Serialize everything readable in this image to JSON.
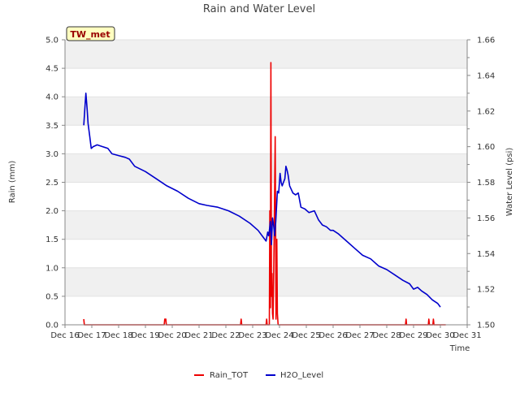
{
  "chart_data": {
    "type": "line",
    "title": "Rain and Water Level",
    "station_badge": "TW_met",
    "xlabel": "Time",
    "ylabel_left": "Rain (mm)",
    "ylabel_right": "Water Level (psi)",
    "x_domain": [
      16,
      31
    ],
    "x_ticks": [
      {
        "x": 16,
        "label": "Dec 16"
      },
      {
        "x": 17,
        "label": "Dec 17"
      },
      {
        "x": 18,
        "label": "Dec 18"
      },
      {
        "x": 19,
        "label": "Dec 19"
      },
      {
        "x": 20,
        "label": "Dec 20"
      },
      {
        "x": 21,
        "label": "Dec 21"
      },
      {
        "x": 22,
        "label": "Dec 22"
      },
      {
        "x": 23,
        "label": "Dec 23"
      },
      {
        "x": 24,
        "label": "Dec 24"
      },
      {
        "x": 25,
        "label": "Dec 25"
      },
      {
        "x": 26,
        "label": "Dec 26"
      },
      {
        "x": 27,
        "label": "Dec 27"
      },
      {
        "x": 28,
        "label": "Dec 28"
      },
      {
        "x": 29,
        "label": "Dec 29"
      },
      {
        "x": 30,
        "label": "Dec 30"
      },
      {
        "x": 31,
        "label": "Dec 31"
      }
    ],
    "y_left": {
      "range": [
        0,
        5
      ],
      "ticks": [
        {
          "v": 0,
          "label": "0.0"
        },
        {
          "v": 0.5,
          "label": "0.5"
        },
        {
          "v": 1,
          "label": "1.0"
        },
        {
          "v": 1.5,
          "label": "1.5"
        },
        {
          "v": 2,
          "label": "2.0"
        },
        {
          "v": 2.5,
          "label": "2.5"
        },
        {
          "v": 3,
          "label": "3.0"
        },
        {
          "v": 3.5,
          "label": "3.5"
        },
        {
          "v": 4,
          "label": "4.0"
        },
        {
          "v": 4.5,
          "label": "4.5"
        },
        {
          "v": 5,
          "label": "5.0"
        }
      ]
    },
    "y_right": {
      "range": [
        1.5,
        1.66
      ],
      "ticks": [
        {
          "v": 1.5,
          "label": "1.50"
        },
        {
          "v": 1.52,
          "label": "1.52"
        },
        {
          "v": 1.54,
          "label": "1.54"
        },
        {
          "v": 1.56,
          "label": "1.56"
        },
        {
          "v": 1.58,
          "label": "1.58"
        },
        {
          "v": 1.6,
          "label": "1.60"
        },
        {
          "v": 1.62,
          "label": "1.62"
        },
        {
          "v": 1.64,
          "label": "1.64"
        },
        {
          "v": 1.66,
          "label": "1.66"
        }
      ]
    },
    "series": [
      {
        "name": "Rain_TOT",
        "axis": "left",
        "color": "#ee0000",
        "points": [
          [
            16.7,
            0.1
          ],
          [
            16.72,
            0
          ],
          [
            19.7,
            0
          ],
          [
            19.72,
            0.1
          ],
          [
            19.76,
            0.1
          ],
          [
            19.78,
            0
          ],
          [
            22.55,
            0
          ],
          [
            22.57,
            0.1
          ],
          [
            22.59,
            0
          ],
          [
            23.5,
            0
          ],
          [
            23.52,
            0.1
          ],
          [
            23.54,
            0
          ],
          [
            23.62,
            0
          ],
          [
            23.64,
            2.0
          ],
          [
            23.66,
            0.3
          ],
          [
            23.68,
            4.6
          ],
          [
            23.7,
            0.5
          ],
          [
            23.72,
            0.9
          ],
          [
            23.74,
            0.2
          ],
          [
            23.76,
            0.1
          ],
          [
            23.8,
            1.5
          ],
          [
            23.84,
            3.3
          ],
          [
            23.87,
            0.1
          ],
          [
            23.9,
            1.5
          ],
          [
            23.92,
            0.2
          ],
          [
            23.95,
            0
          ],
          [
            28.7,
            0
          ],
          [
            28.72,
            0.1
          ],
          [
            28.74,
            0
          ],
          [
            29.55,
            0
          ],
          [
            29.57,
            0.1
          ],
          [
            29.59,
            0
          ],
          [
            29.72,
            0
          ],
          [
            29.74,
            0.1
          ],
          [
            29.76,
            0
          ],
          [
            30.0,
            0
          ],
          [
            30.2,
            0
          ]
        ]
      },
      {
        "name": "H2O_Level",
        "axis": "right",
        "color": "#0000cc",
        "points": [
          [
            16.7,
            1.612
          ],
          [
            16.75,
            1.624
          ],
          [
            16.78,
            1.63
          ],
          [
            16.82,
            1.622
          ],
          [
            16.86,
            1.613
          ],
          [
            16.92,
            1.606
          ],
          [
            16.98,
            1.599
          ],
          [
            17.05,
            1.6
          ],
          [
            17.2,
            1.601
          ],
          [
            17.4,
            1.6
          ],
          [
            17.6,
            1.599
          ],
          [
            17.75,
            1.596
          ],
          [
            18.0,
            1.595
          ],
          [
            18.25,
            1.594
          ],
          [
            18.4,
            1.593
          ],
          [
            18.6,
            1.589
          ],
          [
            19.0,
            1.586
          ],
          [
            19.4,
            1.582
          ],
          [
            19.8,
            1.578
          ],
          [
            20.2,
            1.575
          ],
          [
            20.6,
            1.571
          ],
          [
            21.0,
            1.568
          ],
          [
            21.3,
            1.567
          ],
          [
            21.7,
            1.566
          ],
          [
            22.1,
            1.564
          ],
          [
            22.5,
            1.561
          ],
          [
            22.9,
            1.557
          ],
          [
            23.2,
            1.553
          ],
          [
            23.4,
            1.549
          ],
          [
            23.5,
            1.547
          ],
          [
            23.56,
            1.552
          ],
          [
            23.6,
            1.55
          ],
          [
            23.66,
            1.558
          ],
          [
            23.7,
            1.545
          ],
          [
            23.74,
            1.56
          ],
          [
            23.78,
            1.556
          ],
          [
            23.82,
            1.55
          ],
          [
            23.86,
            1.558
          ],
          [
            23.92,
            1.575
          ],
          [
            23.97,
            1.574
          ],
          [
            24.02,
            1.585
          ],
          [
            24.06,
            1.58
          ],
          [
            24.1,
            1.578
          ],
          [
            24.15,
            1.58
          ],
          [
            24.2,
            1.582
          ],
          [
            24.24,
            1.589
          ],
          [
            24.28,
            1.587
          ],
          [
            24.32,
            1.584
          ],
          [
            24.38,
            1.578
          ],
          [
            24.5,
            1.574
          ],
          [
            24.6,
            1.573
          ],
          [
            24.7,
            1.574
          ],
          [
            24.8,
            1.566
          ],
          [
            24.95,
            1.565
          ],
          [
            25.1,
            1.563
          ],
          [
            25.3,
            1.564
          ],
          [
            25.45,
            1.559
          ],
          [
            25.6,
            1.556
          ],
          [
            25.75,
            1.555
          ],
          [
            25.9,
            1.553
          ],
          [
            26.0,
            1.553
          ],
          [
            26.2,
            1.551
          ],
          [
            26.5,
            1.547
          ],
          [
            26.8,
            1.543
          ],
          [
            27.1,
            1.539
          ],
          [
            27.4,
            1.537
          ],
          [
            27.7,
            1.533
          ],
          [
            28.0,
            1.531
          ],
          [
            28.3,
            1.528
          ],
          [
            28.6,
            1.525
          ],
          [
            28.85,
            1.523
          ],
          [
            29.0,
            1.52
          ],
          [
            29.15,
            1.521
          ],
          [
            29.3,
            1.519
          ],
          [
            29.5,
            1.517
          ],
          [
            29.7,
            1.514
          ],
          [
            29.9,
            1.512
          ],
          [
            30.0,
            1.51
          ]
        ]
      }
    ],
    "legend": {
      "position": "bottom-center",
      "entries": [
        "Rain_TOT",
        "H2O_Level"
      ]
    },
    "grid": "horizontal bands"
  }
}
